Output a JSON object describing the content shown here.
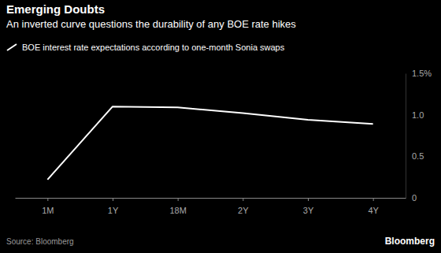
{
  "chart_data": {
    "type": "line",
    "title": "Emerging Doubts",
    "subtitle": "An inverted curve questions the durability of any BOE rate hikes",
    "source": "Source: Bloomberg",
    "logo": "Bloomberg",
    "categories": [
      "1M",
      "1Y",
      "18M",
      "2Y",
      "3Y",
      "4Y"
    ],
    "series": [
      {
        "name": "BOE interest rate expectations according to one-month Sonia swaps",
        "color": "#ffffff",
        "values": [
          0.22,
          1.1,
          1.09,
          1.02,
          0.94,
          0.89
        ]
      }
    ],
    "ylim": [
      0,
      1.5
    ],
    "yticks": [
      0,
      0.5,
      {
        "value": 1.0,
        "label": "1.0"
      },
      {
        "value": 1.5,
        "label": "1.5%"
      }
    ],
    "grid": false,
    "legend": "top-left"
  }
}
